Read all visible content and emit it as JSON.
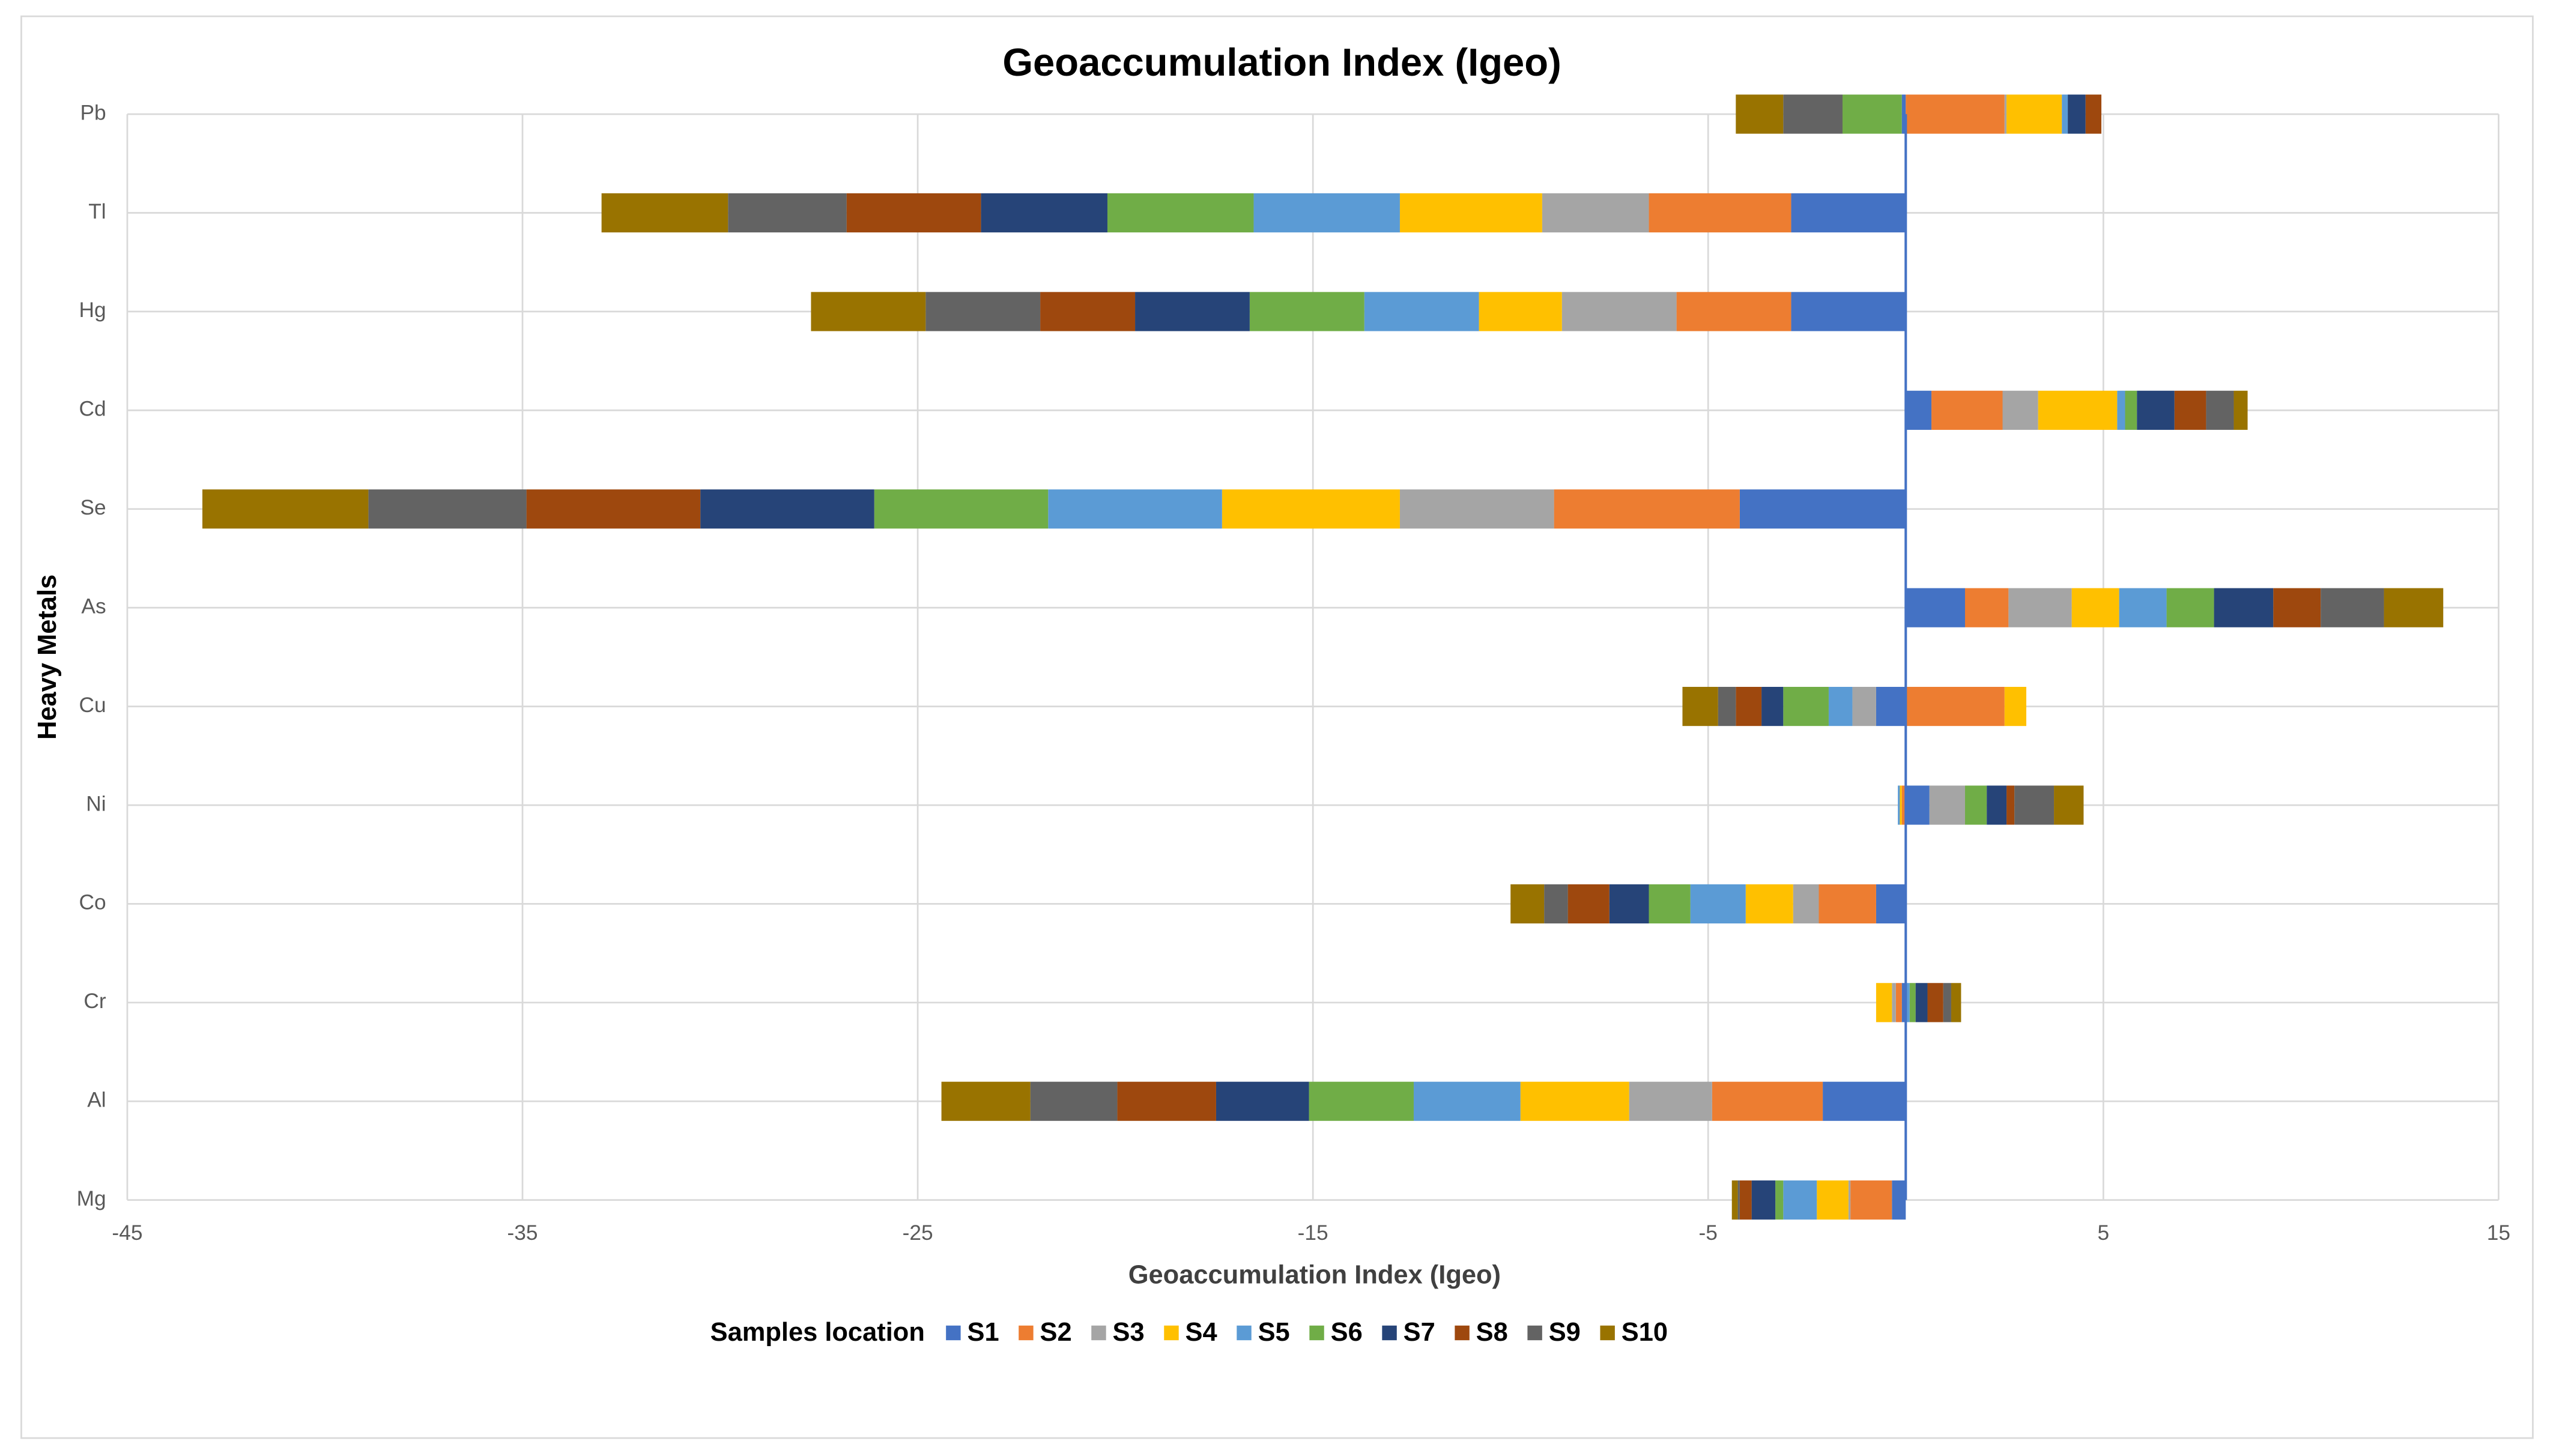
{
  "chart_data": {
    "type": "bar",
    "orientation": "horizontal",
    "stacked": true,
    "title": "Geoaccumulation Index (Igeo)",
    "x_label": "Geoaccumulation Index (Igeo)",
    "y_label": "Heavy Metals",
    "legend_title": "Samples location",
    "legend_position": "bottom",
    "grid": true,
    "categories": [
      "Mg",
      "Al",
      "Cr",
      "Co",
      "Ni",
      "Cu",
      "As",
      "Se",
      "Cd",
      "Hg",
      "Tl",
      "Pb"
    ],
    "xlim": [
      -45,
      15
    ],
    "xticks": [
      -45,
      -35,
      -25,
      -15,
      -5,
      5,
      15
    ],
    "series": [
      {
        "name": "S1",
        "color": "#4472c4",
        "values": [
          -0.35,
          -2.1,
          -0.1,
          -0.75,
          0.6,
          -0.75,
          1.5,
          -4.2,
          0.65,
          -2.9,
          -2.9,
          -0.1
        ]
      },
      {
        "name": "S2",
        "color": "#ed7d31",
        "values": [
          -1.05,
          -2.8,
          -0.15,
          -1.45,
          -0.1,
          2.5,
          1.1,
          -4.7,
          1.8,
          -2.9,
          -3.6,
          2.5
        ]
      },
      {
        "name": "S3",
        "color": "#a5a5a5",
        "values": [
          -0.05,
          -2.1,
          -0.1,
          -0.65,
          0.9,
          -0.6,
          1.6,
          -3.9,
          0.9,
          -2.9,
          -2.7,
          0.05
        ]
      },
      {
        "name": "S4",
        "color": "#ffc000",
        "values": [
          -0.8,
          -2.75,
          -0.4,
          -1.2,
          -0.05,
          0.55,
          1.2,
          -4.5,
          2.0,
          -2.1,
          -3.6,
          1.4
        ]
      },
      {
        "name": "S5",
        "color": "#5b9bd5",
        "values": [
          -0.85,
          -2.7,
          0.1,
          -1.4,
          -0.05,
          -0.6,
          1.2,
          -4.4,
          0.2,
          -2.9,
          -3.7,
          0.15
        ]
      },
      {
        "name": "S6",
        "color": "#70ad47",
        "values": [
          -0.2,
          -2.65,
          0.15,
          -1.05,
          0.55,
          -1.15,
          1.2,
          -4.4,
          0.3,
          -2.9,
          -3.7,
          -1.5
        ]
      },
      {
        "name": "S7",
        "color": "#264478",
        "values": [
          -0.6,
          -2.35,
          0.3,
          -1.0,
          0.5,
          -0.55,
          1.5,
          -4.4,
          0.95,
          -2.9,
          -3.2,
          0.45
        ]
      },
      {
        "name": "S8",
        "color": "#9e480e",
        "values": [
          -0.3,
          -2.5,
          0.4,
          -1.05,
          0.2,
          -0.65,
          1.2,
          -4.4,
          0.8,
          -2.4,
          -3.4,
          0.4
        ]
      },
      {
        "name": "S9",
        "color": "#636363",
        "values": [
          -0.05,
          -2.2,
          0.2,
          -0.6,
          1.0,
          -0.45,
          1.6,
          -4.0,
          0.7,
          -2.9,
          -3.0,
          -1.5
        ]
      },
      {
        "name": "S10",
        "color": "#997300",
        "values": [
          -0.15,
          -2.25,
          0.25,
          -0.85,
          0.75,
          -0.9,
          1.5,
          -4.2,
          0.35,
          -2.9,
          -3.2,
          -1.2
        ]
      }
    ]
  }
}
